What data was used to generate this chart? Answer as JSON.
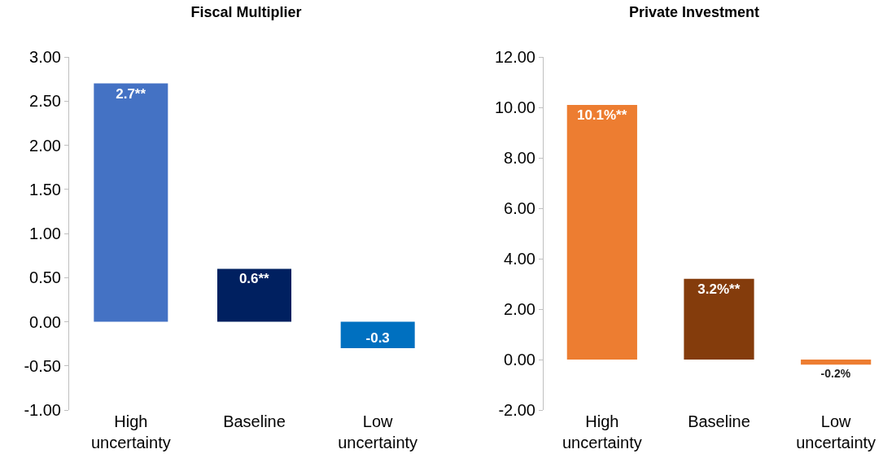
{
  "chart_data": [
    {
      "type": "bar",
      "title": "Fiscal Multiplier",
      "categories": [
        "High uncertainty",
        "Baseline",
        "Low uncertainty"
      ],
      "values": [
        2.7,
        0.6,
        -0.3
      ],
      "colors": [
        "#4472c4",
        "#002060",
        "#0070c0"
      ],
      "value_labels": [
        "2.7**",
        "0.6**",
        "-0.3"
      ],
      "ylim": [
        -1,
        3
      ],
      "yticks": [
        {
          "value": -1,
          "label": "-1.00"
        },
        {
          "value": -0.5,
          "label": "-0.50"
        },
        {
          "value": 0,
          "label": "0.00"
        },
        {
          "value": 0.5,
          "label": "0.50"
        },
        {
          "value": 1,
          "label": "1.00"
        },
        {
          "value": 1.5,
          "label": "1.50"
        },
        {
          "value": 2,
          "label": "2.00"
        },
        {
          "value": 2.5,
          "label": "2.50"
        },
        {
          "value": 3,
          "label": "3.00"
        }
      ],
      "grid": false,
      "legend": false
    },
    {
      "type": "bar",
      "title": "Private Investment",
      "categories": [
        "High uncertainty",
        "Baseline",
        "Low uncertainty"
      ],
      "values": [
        10.1,
        3.2,
        -0.2
      ],
      "colors": [
        "#ed7d31",
        "#843c0c",
        "#ed7d31"
      ],
      "value_labels": [
        "10.1%**",
        "3.2%**",
        "-0.2%"
      ],
      "ylim": [
        -2,
        12
      ],
      "yticks": [
        {
          "value": -2,
          "label": "-2.00"
        },
        {
          "value": 0,
          "label": "0.00"
        },
        {
          "value": 2,
          "label": "2.00"
        },
        {
          "value": 4,
          "label": "4.00"
        },
        {
          "value": 6,
          "label": "6.00"
        },
        {
          "value": 8,
          "label": "8.00"
        },
        {
          "value": 10,
          "label": "10.00"
        },
        {
          "value": 12,
          "label": "12.00"
        }
      ],
      "grid": false,
      "legend": false
    }
  ]
}
